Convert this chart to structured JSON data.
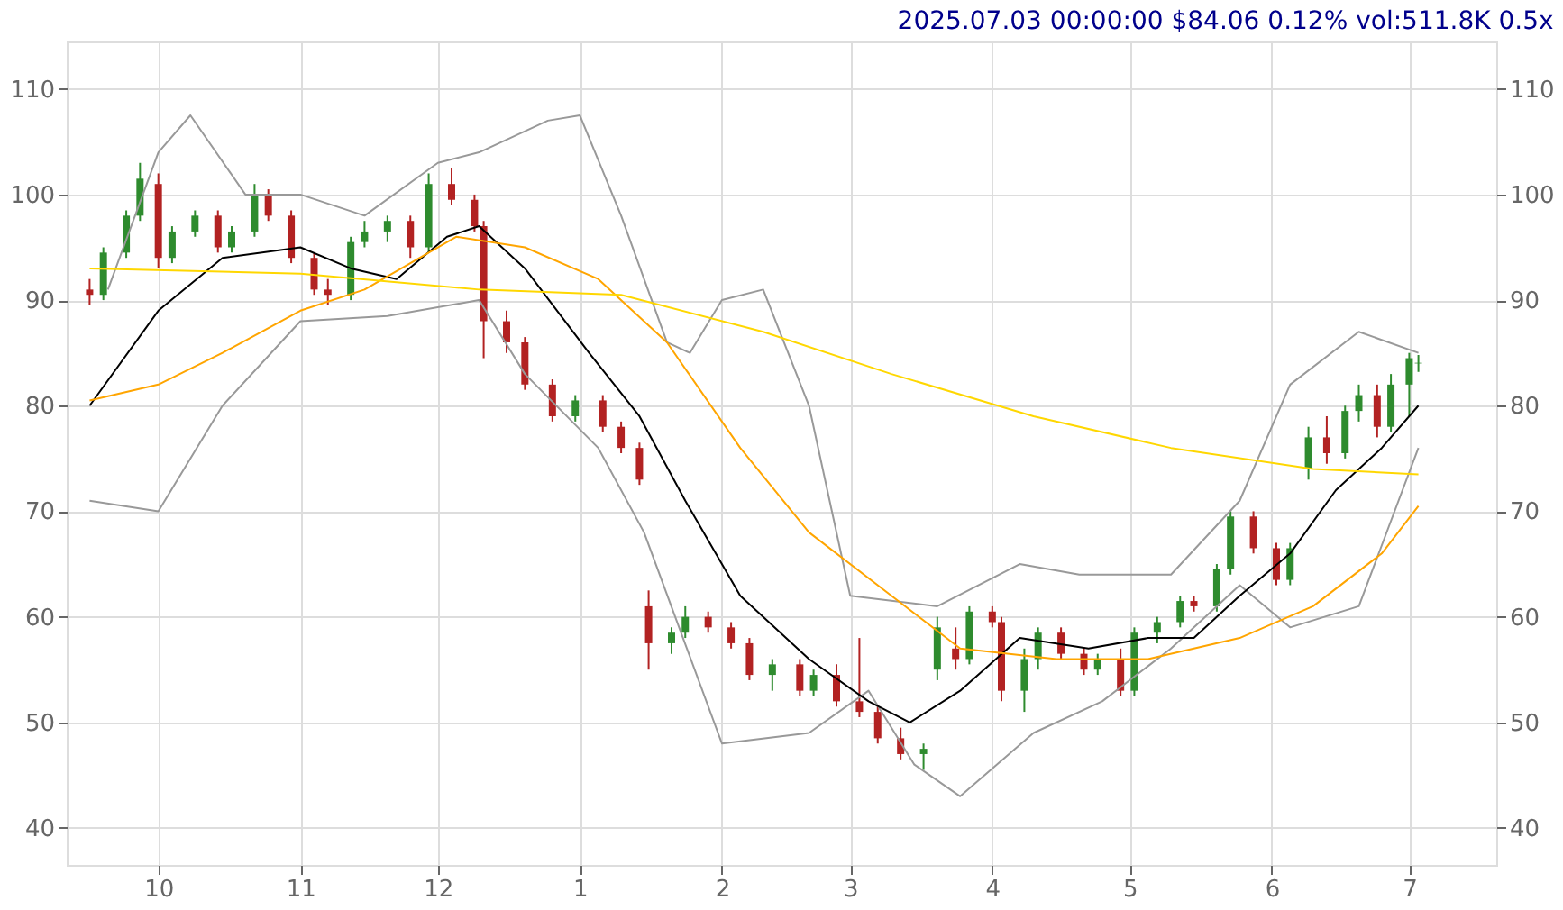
{
  "chart_data": {
    "type": "candlestick",
    "title": "2025.07.03 00:00:00 $84.06 0.12% vol:511.8K 0.5x",
    "xlim": [
      "2024-09-11",
      "2025-07-20"
    ],
    "xticks": [
      {
        "value": "2024-10-01",
        "label": "10"
      },
      {
        "value": "2024-11-01",
        "label": "11"
      },
      {
        "value": "2024-12-01",
        "label": "12"
      },
      {
        "value": "2025-01-01",
        "label": "1"
      },
      {
        "value": "2025-02-01",
        "label": "2"
      },
      {
        "value": "2025-03-01",
        "label": "3"
      },
      {
        "value": "2025-04-01",
        "label": "4"
      },
      {
        "value": "2025-05-01",
        "label": "5"
      },
      {
        "value": "2025-06-01",
        "label": "6"
      },
      {
        "value": "2025-07-01",
        "label": "7"
      }
    ],
    "ylim": [
      36.5,
      114.5
    ],
    "yticks": [
      40,
      50,
      60,
      70,
      80,
      90,
      100,
      110
    ],
    "y2lim": [
      36.5,
      114.5
    ],
    "y2ticks": [
      40,
      50,
      60,
      70,
      80,
      90,
      100,
      110
    ],
    "grid": true,
    "series": [
      {
        "x": [
          "2024-09-16",
          "2024-09-19",
          "2024-09-24",
          "2024-09-27",
          "2024-10-01",
          "2024-10-04",
          "2024-10-09",
          "2024-10-14",
          "2024-10-17",
          "2024-10-22",
          "2024-10-25",
          "2024-10-30",
          "2024-11-04",
          "2024-11-07",
          "2024-11-12",
          "2024-11-15",
          "2024-11-20",
          "2024-11-25",
          "2024-11-29",
          "2024-12-04",
          "2024-12-09",
          "2024-12-11",
          "2024-12-16",
          "2024-12-20",
          "2024-12-26",
          "2024-12-31",
          "2025-01-06",
          "2025-01-10",
          "2025-01-14",
          "2025-01-16",
          "2025-01-21",
          "2025-01-24",
          "2025-01-29",
          "2025-02-03",
          "2025-02-07",
          "2025-02-12",
          "2025-02-18",
          "2025-02-21",
          "2025-02-26",
          "2025-03-03",
          "2025-03-07",
          "2025-03-12",
          "2025-03-17",
          "2025-03-20",
          "2025-03-24",
          "2025-03-27",
          "2025-04-01",
          "2025-04-03",
          "2025-04-08",
          "2025-04-11",
          "2025-04-16",
          "2025-04-21",
          "2025-04-24",
          "2025-04-29",
          "2025-05-02",
          "2025-05-07",
          "2025-05-12",
          "2025-05-15",
          "2025-05-20",
          "2025-05-23",
          "2025-05-28",
          "2025-06-02",
          "2025-06-05",
          "2025-06-09",
          "2025-06-13",
          "2025-06-17",
          "2025-06-20",
          "2025-06-24",
          "2025-06-27",
          "2025-07-01",
          "2025-07-03"
        ],
        "ohlc": [
          [
            91,
            92,
            89.5,
            90.5
          ],
          [
            90.5,
            95,
            90,
            94.5
          ],
          [
            94.5,
            98.5,
            94,
            98
          ],
          [
            98,
            103,
            97.5,
            101.5
          ],
          [
            101,
            102,
            93,
            94
          ],
          [
            94,
            97,
            93.5,
            96.5
          ],
          [
            96.5,
            98.5,
            96,
            98
          ],
          [
            98,
            98.5,
            94.5,
            95
          ],
          [
            95,
            97,
            94.5,
            96.5
          ],
          [
            96.5,
            101,
            96,
            100
          ],
          [
            100,
            100.5,
            97.5,
            98
          ],
          [
            98,
            98.5,
            93.5,
            94
          ],
          [
            94,
            94.5,
            90.5,
            91
          ],
          [
            91,
            92,
            89.5,
            90.5
          ],
          [
            90.5,
            96,
            90,
            95.5
          ],
          [
            95.5,
            97.5,
            95,
            96.5
          ],
          [
            96.5,
            98,
            95.5,
            97.5
          ],
          [
            97.5,
            98,
            94,
            95
          ],
          [
            95,
            102,
            94.5,
            101
          ],
          [
            101,
            102.5,
            99,
            99.5
          ],
          [
            99.5,
            100,
            96.5,
            97
          ],
          [
            97,
            97.5,
            84.5,
            88
          ],
          [
            88,
            89,
            85,
            86
          ],
          [
            86,
            86.5,
            81.5,
            82
          ],
          [
            82,
            82.5,
            78.5,
            79
          ],
          [
            79,
            81,
            78.5,
            80.5
          ],
          [
            80.5,
            81,
            77.5,
            78
          ],
          [
            78,
            78.5,
            75.5,
            76
          ],
          [
            76,
            76.5,
            72.5,
            73
          ],
          [
            61,
            62.5,
            55,
            57.5
          ],
          [
            57.5,
            59,
            56.5,
            58.5
          ],
          [
            58.5,
            61,
            58,
            60
          ],
          [
            60,
            60.5,
            58.5,
            59
          ],
          [
            59,
            59.5,
            57,
            57.5
          ],
          [
            57.5,
            58,
            54,
            54.5
          ],
          [
            54.5,
            56,
            53,
            55.5
          ],
          [
            55.5,
            56,
            52.5,
            53
          ],
          [
            53,
            55,
            52.5,
            54.5
          ],
          [
            54.5,
            55.5,
            51.5,
            52
          ],
          [
            52,
            58,
            50.5,
            51
          ],
          [
            51,
            51.5,
            48,
            48.5
          ],
          [
            48.5,
            49.5,
            46.5,
            47
          ],
          [
            47,
            48,
            45.5,
            47.5
          ],
          [
            55,
            60,
            54,
            59
          ],
          [
            57,
            59,
            55,
            56
          ],
          [
            56,
            61,
            55.5,
            60.5
          ],
          [
            60.5,
            61,
            59,
            59.5
          ],
          [
            59.5,
            60,
            52,
            53
          ],
          [
            53,
            57,
            51,
            56
          ],
          [
            56,
            59,
            55,
            58.5
          ],
          [
            58.5,
            59,
            56,
            56.5
          ],
          [
            56.5,
            57,
            54.5,
            55
          ],
          [
            55,
            56.5,
            54.5,
            56
          ],
          [
            56,
            57,
            52.5,
            53
          ],
          [
            53,
            59,
            52.5,
            58.5
          ],
          [
            58.5,
            60,
            57.5,
            59.5
          ],
          [
            59.5,
            62,
            59,
            61.5
          ],
          [
            61.5,
            62,
            60.5,
            61
          ],
          [
            61,
            65,
            60.5,
            64.5
          ],
          [
            64.5,
            70,
            64,
            69.5
          ],
          [
            69.5,
            70,
            66,
            66.5
          ],
          [
            66.5,
            67,
            63,
            63.5
          ],
          [
            63.5,
            67,
            63,
            66.5
          ],
          [
            74,
            78,
            73,
            77
          ],
          [
            77,
            79,
            74.5,
            75.5
          ],
          [
            75.5,
            80,
            75,
            79.5
          ],
          [
            79.5,
            82,
            78.5,
            81
          ],
          [
            81,
            82,
            77,
            78
          ],
          [
            78,
            83,
            77.5,
            82
          ],
          [
            82,
            85,
            79,
            84.5
          ],
          [
            84,
            84.8,
            83.2,
            84.06
          ]
        ],
        "colors": [
          "#b22222",
          "#2e8b2e",
          "#2e8b2e",
          "#2e8b2e",
          "#b22222",
          "#2e8b2e",
          "#2e8b2e",
          "#b22222",
          "#2e8b2e",
          "#2e8b2e",
          "#b22222",
          "#b22222",
          "#b22222",
          "#b22222",
          "#2e8b2e",
          "#2e8b2e",
          "#2e8b2e",
          "#b22222",
          "#2e8b2e",
          "#b22222",
          "#b22222",
          "#b22222",
          "#b22222",
          "#b22222",
          "#b22222",
          "#2e8b2e",
          "#b22222",
          "#b22222",
          "#b22222",
          "#b22222",
          "#2e8b2e",
          "#2e8b2e",
          "#b22222",
          "#b22222",
          "#b22222",
          "#2e8b2e",
          "#b22222",
          "#2e8b2e",
          "#b22222",
          "#b22222",
          "#b22222",
          "#b22222",
          "#2e8b2e",
          "#2e8b2e",
          "#b22222",
          "#2e8b2e",
          "#b22222",
          "#b22222",
          "#2e8b2e",
          "#2e8b2e",
          "#b22222",
          "#b22222",
          "#2e8b2e",
          "#b22222",
          "#2e8b2e",
          "#2e8b2e",
          "#2e8b2e",
          "#b22222",
          "#2e8b2e",
          "#2e8b2e",
          "#b22222",
          "#b22222",
          "#2e8b2e",
          "#2e8b2e",
          "#b22222",
          "#2e8b2e",
          "#2e8b2e",
          "#b22222",
          "#2e8b2e",
          "#2e8b2e",
          "#2e8b2e"
        ]
      },
      {
        "type": "line",
        "color": "#999999",
        "x": [
          "2024-09-20",
          "2024-10-01",
          "2024-10-08",
          "2024-10-20",
          "2024-11-01",
          "2024-11-15",
          "2024-12-01",
          "2024-12-10",
          "2024-12-25",
          "2025-01-01",
          "2025-01-10",
          "2025-01-20",
          "2025-01-25",
          "2025-02-01",
          "2025-02-10",
          "2025-02-20",
          "2025-03-01",
          "2025-03-20",
          "2025-04-07",
          "2025-04-20",
          "2025-05-10",
          "2025-05-25",
          "2025-06-05",
          "2025-06-20",
          "2025-07-03"
        ],
        "values": [
          91,
          104,
          107.5,
          100,
          100,
          98,
          103,
          104,
          107,
          107.5,
          98,
          86,
          85,
          90,
          91,
          80,
          62,
          61,
          65,
          64,
          64,
          71,
          82,
          87,
          85
        ]
      },
      {
        "type": "line",
        "color": "#999999",
        "x": [
          "2024-09-16",
          "2024-10-01",
          "2024-10-15",
          "2024-11-01",
          "2024-11-20",
          "2024-12-10",
          "2024-12-20",
          "2025-01-05",
          "2025-01-15",
          "2025-02-01",
          "2025-02-20",
          "2025-03-05",
          "2025-03-15",
          "2025-03-25",
          "2025-04-10",
          "2025-04-25",
          "2025-05-10",
          "2025-05-25",
          "2025-06-05",
          "2025-06-20",
          "2025-07-03"
        ],
        "values": [
          71,
          70,
          80,
          88,
          88.5,
          90,
          83,
          76,
          68,
          48,
          49,
          53,
          46,
          43,
          49,
          52,
          57,
          63,
          59,
          61,
          76
        ]
      },
      {
        "type": "line",
        "color": "#000000",
        "x": [
          "2024-09-16",
          "2024-10-01",
          "2024-10-15",
          "2024-11-01",
          "2024-11-12",
          "2024-11-22",
          "2024-12-03",
          "2024-12-10",
          "2024-12-20",
          "2025-01-03",
          "2025-01-14",
          "2025-01-24",
          "2025-02-05",
          "2025-02-20",
          "2025-03-05",
          "2025-03-14",
          "2025-03-25",
          "2025-04-07",
          "2025-04-22",
          "2025-05-05",
          "2025-05-15",
          "2025-05-25",
          "2025-06-05",
          "2025-06-15",
          "2025-06-25",
          "2025-07-03"
        ],
        "values": [
          80,
          89,
          94,
          95,
          93,
          92,
          96,
          97,
          93,
          85,
          79,
          71,
          62,
          56,
          52,
          50,
          53,
          58,
          57,
          58,
          58,
          62,
          66,
          72,
          76,
          80
        ]
      },
      {
        "type": "line",
        "color": "#ffa500",
        "x": [
          "2024-09-16",
          "2024-10-01",
          "2024-10-15",
          "2024-11-01",
          "2024-11-15",
          "2024-12-05",
          "2024-12-20",
          "2025-01-05",
          "2025-01-20",
          "2025-02-05",
          "2025-02-20",
          "2025-03-10",
          "2025-03-25",
          "2025-04-15",
          "2025-05-05",
          "2025-05-25",
          "2025-06-10",
          "2025-06-25",
          "2025-07-03"
        ],
        "values": [
          80.5,
          82,
          85,
          89,
          91,
          96,
          95,
          92,
          86,
          76,
          68,
          62,
          57,
          56,
          56,
          58,
          61,
          66,
          70.5
        ]
      },
      {
        "type": "line",
        "color": "#ffd700",
        "x": [
          "2024-09-16",
          "2024-11-01",
          "2024-12-10",
          "2025-01-10",
          "2025-02-10",
          "2025-03-10",
          "2025-04-10",
          "2025-05-10",
          "2025-06-10",
          "2025-07-03"
        ],
        "values": [
          93,
          92.5,
          91,
          90.5,
          87,
          83,
          79,
          76,
          74,
          73.5
        ]
      }
    ]
  }
}
